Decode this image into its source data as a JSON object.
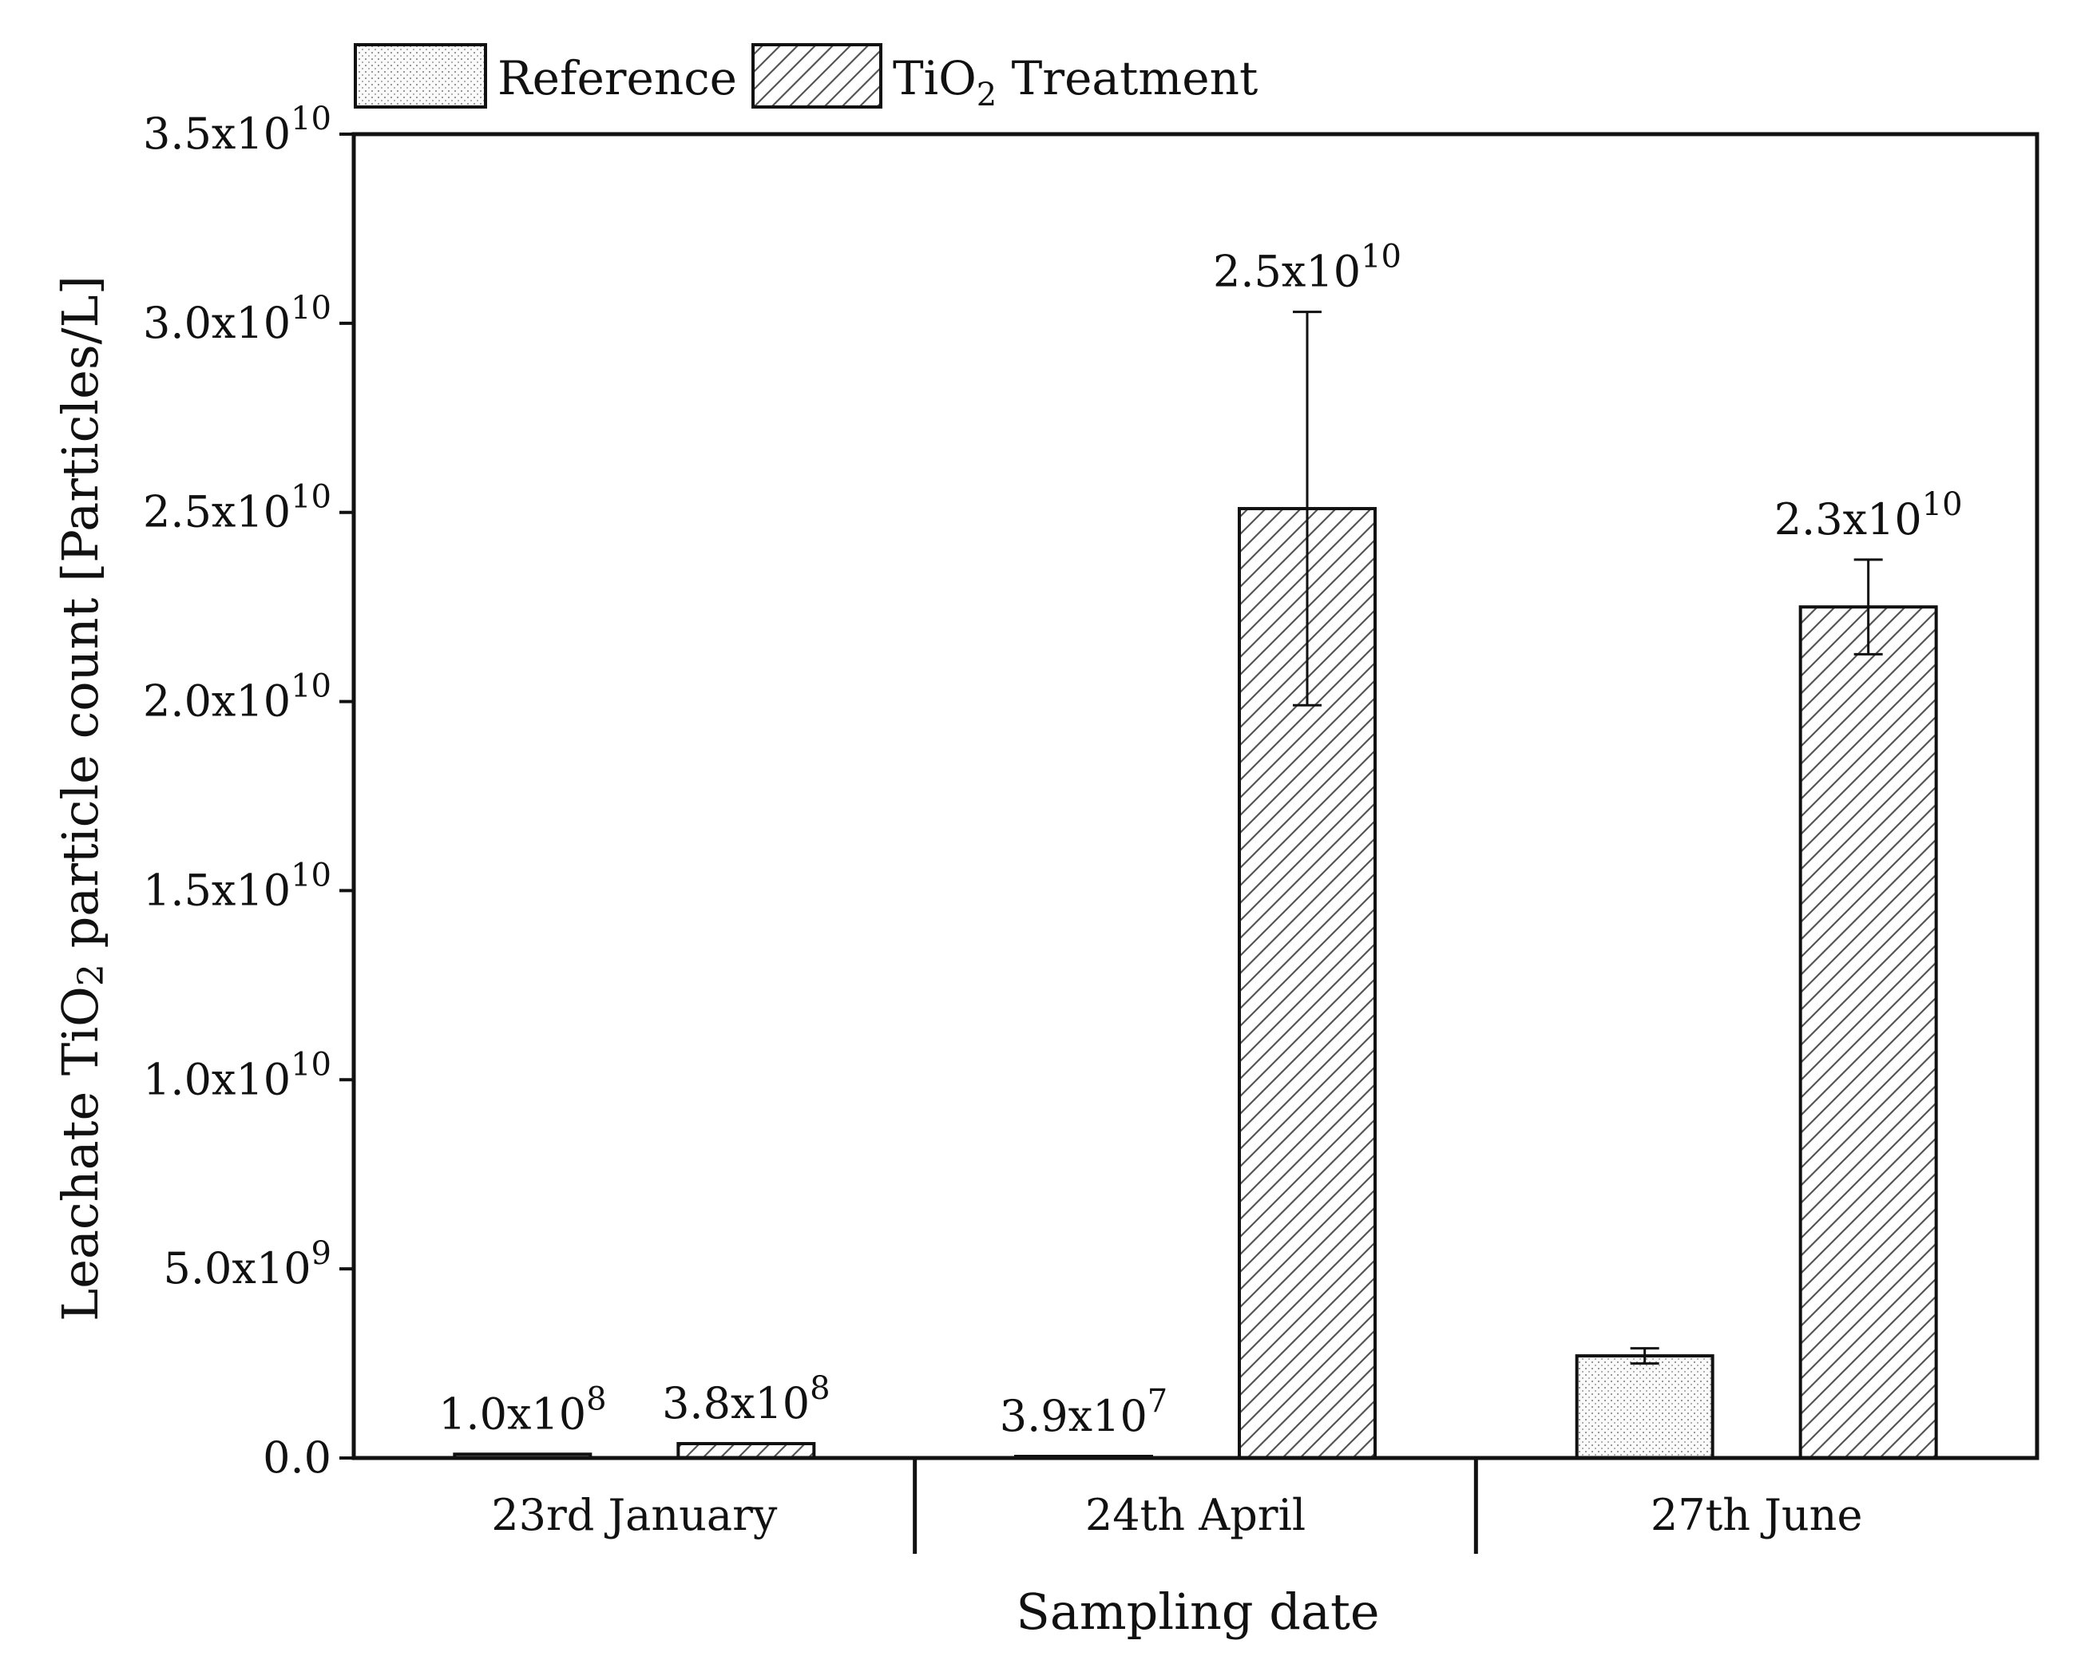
{
  "chart_data": {
    "type": "bar",
    "title": "",
    "xlabel": "Sampling date",
    "ylabel": {
      "pre": "Leachate TiO",
      "sub": "2",
      "post": " particle count [Particles/L]"
    },
    "categories": [
      "23rd January",
      "24th April",
      "27th June"
    ],
    "series": [
      {
        "name": "Reference",
        "pattern": "dots",
        "values": [
          100000000,
          39000000,
          2700000000
        ],
        "error": [
          0,
          0,
          200000000
        ],
        "labels": [
          {
            "mant": "1.0x10",
            "exp": "8"
          },
          {
            "mant": "3.9x10",
            "exp": "7"
          },
          null
        ]
      },
      {
        "name": {
          "pre": "TiO",
          "sub": "2",
          "post": " Treatment"
        },
        "pattern": "hatch",
        "values": [
          380000000,
          25100000000,
          22500000000
        ],
        "error": [
          0,
          5200000000,
          1250000000
        ],
        "labels": [
          {
            "mant": "3.8x10",
            "exp": "8"
          },
          {
            "mant": "2.5x10",
            "exp": "10"
          },
          {
            "mant": "2.3x10",
            "exp": "10"
          }
        ]
      }
    ],
    "yticks": [
      {
        "value": 0,
        "mant": "0.0",
        "exp": ""
      },
      {
        "value": 5000000000,
        "mant": "5.0x10",
        "exp": "9"
      },
      {
        "value": 10000000000,
        "mant": "1.0x10",
        "exp": "10"
      },
      {
        "value": 15000000000,
        "mant": "1.5x10",
        "exp": "10"
      },
      {
        "value": 20000000000,
        "mant": "2.0x10",
        "exp": "10"
      },
      {
        "value": 25000000000,
        "mant": "2.5x10",
        "exp": "10"
      },
      {
        "value": 30000000000,
        "mant": "3.0x10",
        "exp": "10"
      },
      {
        "value": 35000000000,
        "mant": "3.5x10",
        "exp": "10"
      }
    ],
    "ylim": [
      0,
      35000000000
    ],
    "grid": false,
    "legend": "top-left, outside plot",
    "colors": {
      "bar_fill": "#ffffff",
      "bar_stroke": "#111111",
      "pattern": "#555555"
    }
  }
}
